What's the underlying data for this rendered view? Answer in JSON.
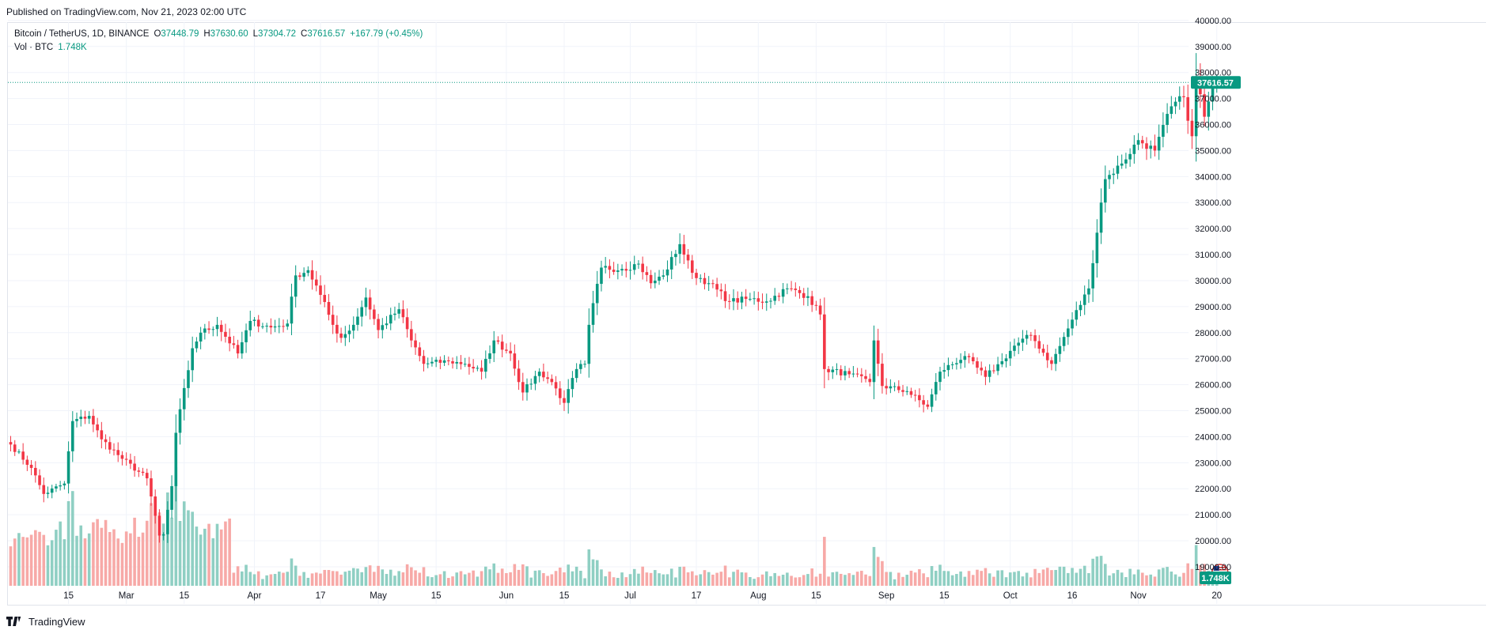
{
  "header": {
    "published": "Published on TradingView.com, Nov 21, 2023 02:00 UTC"
  },
  "legend": {
    "symbol": "Bitcoin / TetherUS, 1D, BINANCE",
    "open_label": "O",
    "open": "37448.79",
    "high_label": "H",
    "high": "37630.60",
    "low_label": "L",
    "low": "37304.72",
    "close_label": "C",
    "close": "37616.57",
    "change": "+167.79 (+0.45%)",
    "vol_label": "Vol · BTC",
    "vol": "1.748K"
  },
  "footer": {
    "brand": "TradingView"
  },
  "colors": {
    "up": "#089981",
    "down": "#f23645",
    "vol_up": "#8fcfc3",
    "vol_down": "#f7a9a7",
    "grid": "#f0f3fa"
  },
  "chart_data": {
    "type": "candlestick",
    "title": "Bitcoin / TetherUS, 1D, BINANCE",
    "ylim": [
      18300,
      40300
    ],
    "y_ticks": [
      "40000.00",
      "39000.00",
      "38000.00",
      "37000.00",
      "36000.00",
      "35000.00",
      "34000.00",
      "33000.00",
      "32000.00",
      "31000.00",
      "30000.00",
      "29000.00",
      "28000.00",
      "27000.00",
      "26000.00",
      "25000.00",
      "24000.00",
      "23000.00",
      "22000.00",
      "21000.00",
      "20000.00",
      "19000.00"
    ],
    "x_ticks": [
      {
        "label": "15",
        "date": "2023-02-15"
      },
      {
        "label": "Mar",
        "date": "2023-03-01"
      },
      {
        "label": "15",
        "date": "2023-03-15"
      },
      {
        "label": "Apr",
        "date": "2023-04-01"
      },
      {
        "label": "17",
        "date": "2023-04-17"
      },
      {
        "label": "May",
        "date": "2023-05-01"
      },
      {
        "label": "15",
        "date": "2023-05-15"
      },
      {
        "label": "Jun",
        "date": "2023-06-01"
      },
      {
        "label": "15",
        "date": "2023-06-15"
      },
      {
        "label": "Jul",
        "date": "2023-07-01"
      },
      {
        "label": "17",
        "date": "2023-07-17"
      },
      {
        "label": "Aug",
        "date": "2023-08-01"
      },
      {
        "label": "15",
        "date": "2023-08-15"
      },
      {
        "label": "Sep",
        "date": "2023-09-01"
      },
      {
        "label": "15",
        "date": "2023-09-15"
      },
      {
        "label": "Oct",
        "date": "2023-10-01"
      },
      {
        "label": "16",
        "date": "2023-10-16"
      },
      {
        "label": "Nov",
        "date": "2023-11-01"
      },
      {
        "label": "20",
        "date": "2023-11-20"
      }
    ],
    "last_price_label": "37616.57",
    "last_price": 37616.57,
    "last_volume_label": "1.748K",
    "start_date": "2023-02-01",
    "close_path": [
      [
        "2023-02-01",
        23700
      ],
      [
        "2023-02-06",
        22800
      ],
      [
        "2023-02-09",
        21800
      ],
      [
        "2023-02-14",
        22200
      ],
      [
        "2023-02-16",
        24600
      ],
      [
        "2023-02-20",
        24800
      ],
      [
        "2023-02-23",
        23900
      ],
      [
        "2023-02-28",
        23150
      ],
      [
        "2023-03-06",
        22400
      ],
      [
        "2023-03-09",
        20200
      ],
      [
        "2023-03-10",
        20250
      ],
      [
        "2023-03-12",
        22100
      ],
      [
        "2023-03-13",
        24150
      ],
      [
        "2023-03-17",
        27400
      ],
      [
        "2023-03-19",
        28000
      ],
      [
        "2023-03-23",
        28300
      ],
      [
        "2023-03-28",
        27200
      ],
      [
        "2023-03-31",
        28450
      ],
      [
        "2023-04-05",
        28200
      ],
      [
        "2023-04-09",
        28350
      ],
      [
        "2023-04-11",
        30200
      ],
      [
        "2023-04-14",
        30400
      ],
      [
        "2023-04-17",
        29450
      ],
      [
        "2023-04-20",
        28300
      ],
      [
        "2023-04-22",
        27800
      ],
      [
        "2023-04-25",
        28300
      ],
      [
        "2023-04-28",
        29350
      ],
      [
        "2023-05-01",
        28100
      ],
      [
        "2023-05-06",
        28900
      ],
      [
        "2023-05-09",
        27700
      ],
      [
        "2023-05-12",
        26800
      ],
      [
        "2023-05-18",
        26900
      ],
      [
        "2023-05-22",
        26800
      ],
      [
        "2023-05-26",
        26500
      ],
      [
        "2023-05-29",
        27700
      ],
      [
        "2023-06-02",
        27200
      ],
      [
        "2023-06-05",
        25700
      ],
      [
        "2023-06-09",
        26500
      ],
      [
        "2023-06-12",
        26100
      ],
      [
        "2023-06-15",
        25300
      ],
      [
        "2023-06-18",
        26600
      ],
      [
        "2023-06-20",
        26800
      ],
      [
        "2023-06-21",
        28300
      ],
      [
        "2023-06-24",
        30500
      ],
      [
        "2023-06-29",
        30450
      ],
      [
        "2023-07-03",
        30650
      ],
      [
        "2023-07-06",
        29900
      ],
      [
        "2023-07-09",
        30200
      ],
      [
        "2023-07-13",
        31400
      ],
      [
        "2023-07-16",
        30300
      ],
      [
        "2023-07-20",
        29900
      ],
      [
        "2023-07-25",
        29200
      ],
      [
        "2023-07-30",
        29300
      ],
      [
        "2023-08-03",
        29200
      ],
      [
        "2023-08-08",
        29700
      ],
      [
        "2023-08-13",
        29400
      ],
      [
        "2023-08-16",
        28700
      ],
      [
        "2023-08-17",
        26600
      ],
      [
        "2023-08-23",
        26400
      ],
      [
        "2023-08-28",
        26100
      ],
      [
        "2023-08-29",
        27700
      ],
      [
        "2023-08-31",
        25950
      ],
      [
        "2023-09-06",
        25750
      ],
      [
        "2023-09-11",
        25150
      ],
      [
        "2023-09-14",
        26500
      ],
      [
        "2023-09-20",
        27100
      ],
      [
        "2023-09-25",
        26300
      ],
      [
        "2023-09-29",
        26900
      ],
      [
        "2023-10-02",
        27500
      ],
      [
        "2023-10-06",
        27900
      ],
      [
        "2023-10-11",
        26800
      ],
      [
        "2023-10-16",
        28500
      ],
      [
        "2023-10-20",
        29700
      ],
      [
        "2023-10-23",
        33000
      ],
      [
        "2023-10-24",
        33900
      ],
      [
        "2023-10-28",
        34500
      ],
      [
        "2023-11-01",
        35400
      ],
      [
        "2023-11-05",
        35000
      ],
      [
        "2023-11-09",
        36700
      ],
      [
        "2023-11-12",
        37050
      ],
      [
        "2023-11-14",
        35550
      ],
      [
        "2023-11-15",
        37850
      ],
      [
        "2023-11-17",
        36300
      ],
      [
        "2023-11-19",
        37400
      ],
      [
        "2023-11-20",
        37616.57
      ]
    ]
  }
}
